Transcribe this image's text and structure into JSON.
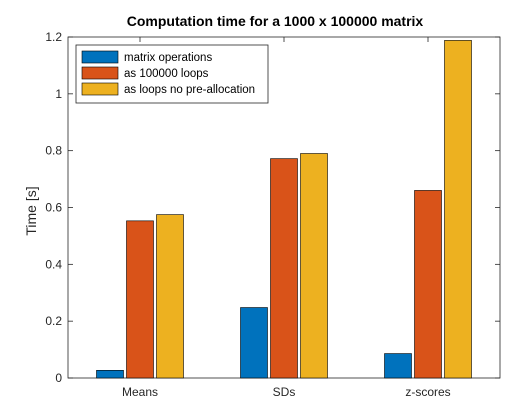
{
  "chart_data": {
    "type": "bar",
    "title": "Computation time for a 1000 x 100000 matrix",
    "xlabel": "",
    "ylabel": "Time [s]",
    "ylim": [
      0,
      1.2
    ],
    "yticks": [
      0,
      0.2,
      0.4,
      0.6,
      0.8,
      1,
      1.2
    ],
    "ytick_labels": [
      "0",
      "0.2",
      "0.4",
      "0.6",
      "0.8",
      "1",
      "1.2"
    ],
    "categories": [
      "Means",
      "SDs",
      "z-scores"
    ],
    "series": [
      {
        "name": "matrix operations",
        "color": "#0072BD",
        "values": [
          0.027,
          0.248,
          0.086
        ]
      },
      {
        "name": "as 100000 loops",
        "color": "#D95319",
        "values": [
          0.553,
          0.772,
          0.66
        ]
      },
      {
        "name": "as loops no pre-allocation",
        "color": "#EDB120",
        "values": [
          0.575,
          0.79,
          1.188
        ]
      }
    ],
    "legend_position": "top-left",
    "grid": false,
    "box": true
  }
}
